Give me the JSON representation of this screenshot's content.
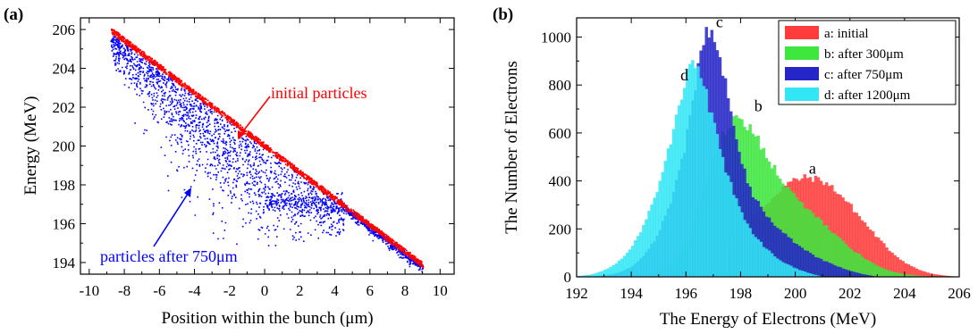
{
  "chart_data": [
    {
      "panel_label": "(a)",
      "type": "scatter",
      "xlabel": "Position within the bunch (μm)",
      "ylabel": "Energy (MeV)",
      "xlim": [
        -10.5,
        10.8
      ],
      "ylim": [
        193.4,
        206.6
      ],
      "xticks": [
        "-10",
        "-8",
        "-6",
        "-4",
        "-2",
        "0",
        "2",
        "4",
        "6",
        "8",
        "10"
      ],
      "yticks": [
        "194",
        "196",
        "198",
        "200",
        "202",
        "204",
        "206"
      ],
      "grid": false,
      "series": [
        {
          "name": "initial particles",
          "color": "#ff0000",
          "x_range": [
            -8.8,
            9.0
          ],
          "y_range": [
            206.0,
            193.9
          ],
          "relation": "linear decreasing band"
        },
        {
          "name": "particles after 750μm",
          "color": "#0000ff",
          "x_range": [
            -8.8,
            9.0
          ],
          "y_range": [
            194.0,
            205.8
          ],
          "relation": "scattered below initial band, spread 195–205.8 MeV"
        }
      ],
      "annotations": [
        {
          "text": "initial particles",
          "color": "#ff0000"
        },
        {
          "text": "particles after 750μm",
          "color": "#0000ff"
        }
      ]
    },
    {
      "panel_label": "(b)",
      "type": "bar",
      "xlabel": "The Energy of Electrons (MeV)",
      "ylabel": "The Number of Electrons",
      "xlim": [
        192,
        206
      ],
      "ylim": [
        0,
        1080
      ],
      "xticks": [
        "192",
        "194",
        "196",
        "198",
        "200",
        "202",
        "204",
        "206"
      ],
      "yticks": [
        "0",
        "200",
        "400",
        "600",
        "800",
        "1000"
      ],
      "legend_position": "top-right",
      "series": [
        {
          "name": "a: initial",
          "color": "#ff3b3b",
          "label": "a",
          "x": [
            194.5,
            195.0,
            195.5,
            196.0,
            196.5,
            197.0,
            197.5,
            198.0,
            198.5,
            199.0,
            199.5,
            200.0,
            200.5,
            201.0,
            201.5,
            202.0,
            202.5,
            203.0,
            203.5,
            204.0,
            204.5,
            205.0,
            205.5,
            206.0
          ],
          "values": [
            5,
            10,
            20,
            40,
            70,
            105,
            150,
            200,
            255,
            310,
            370,
            405,
            415,
            400,
            360,
            300,
            230,
            165,
            105,
            60,
            30,
            12,
            4,
            0
          ]
        },
        {
          "name": "b: after 300μm",
          "color": "#3ee63e",
          "label": "b",
          "x": [
            194.5,
            195.0,
            195.5,
            196.0,
            196.5,
            197.0,
            197.5,
            198.0,
            198.5,
            199.0,
            199.5,
            200.0,
            200.5,
            201.0,
            201.5,
            202.0,
            202.5,
            203.0,
            203.5,
            204.0,
            204.5,
            205.0
          ],
          "values": [
            10,
            25,
            60,
            140,
            300,
            500,
            620,
            670,
            600,
            500,
            400,
            330,
            280,
            225,
            170,
            120,
            80,
            45,
            22,
            10,
            4,
            0
          ]
        },
        {
          "name": "c: after 750μm",
          "color": "#2525c8",
          "label": "c",
          "x": [
            193.0,
            193.5,
            194.0,
            194.5,
            195.0,
            195.5,
            196.0,
            196.5,
            196.8,
            197.0,
            197.5,
            198.0,
            198.5,
            199.0,
            199.5,
            200.0,
            200.5,
            201.0,
            201.5,
            202.0,
            202.5,
            203.0
          ],
          "values": [
            5,
            15,
            40,
            90,
            180,
            330,
            560,
            900,
            1050,
            1000,
            800,
            480,
            330,
            250,
            190,
            140,
            100,
            70,
            45,
            25,
            10,
            0
          ]
        },
        {
          "name": "d: after 1200μm",
          "color": "#33e6f5",
          "label": "d",
          "x": [
            192.0,
            192.5,
            193.0,
            193.5,
            194.0,
            194.5,
            195.0,
            195.5,
            196.0,
            196.3,
            196.5,
            197.0,
            197.5,
            198.0,
            198.5,
            199.0,
            199.5,
            200.0,
            200.5,
            201.0
          ],
          "values": [
            2,
            8,
            25,
            60,
            120,
            220,
            380,
            580,
            820,
            900,
            860,
            650,
            430,
            270,
            170,
            110,
            65,
            35,
            15,
            0
          ]
        }
      ]
    }
  ]
}
